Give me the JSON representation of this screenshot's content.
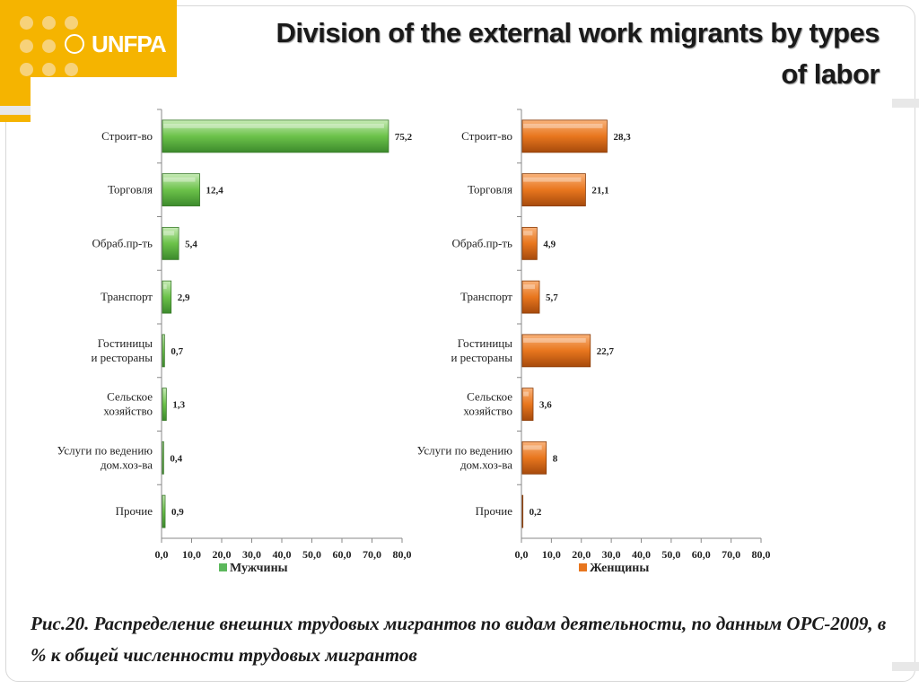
{
  "slide": {
    "title": "Division of the external work migrants  by types of labor",
    "logo_text": "UNFPA",
    "caption": "Рис.20. Распределение внешних трудовых мигрантов по видам деятельности, по данным ОРС-2009, в % к общей численности трудовых мигрантов"
  },
  "colors": {
    "logo": "#f5b400",
    "men": "#5cb85c",
    "women": "#e8761e"
  },
  "chart_data": [
    {
      "type": "bar",
      "orientation": "horizontal",
      "categories": [
        "Строит-во",
        "Торговля",
        "Обраб.пр-ть",
        "Транспорт",
        "Гостиницы и рестораны",
        "Сельское хозяйство",
        "Услуги по ведению дом.хоз-ва",
        "Прочие"
      ],
      "series": [
        {
          "name": "Мужчины",
          "values": [
            75.2,
            12.4,
            5.4,
            2.9,
            0.7,
            1.3,
            0.4,
            0.9
          ],
          "value_labels": [
            "75,2",
            "12,4",
            "5,4",
            "2,9",
            "0,7",
            "1,3",
            "0,4",
            "0,9"
          ]
        }
      ],
      "xlim": [
        0,
        80
      ],
      "x_ticks": [
        "0,0",
        "10,0",
        "20,0",
        "30,0",
        "40,0",
        "50,0",
        "60,0",
        "70,0",
        "80,0"
      ],
      "legend": "bottom",
      "grid": false
    },
    {
      "type": "bar",
      "orientation": "horizontal",
      "categories": [
        "Строит-во",
        "Торговля",
        "Обраб.пр-ть",
        "Транспорт",
        "Гостиницы и рестораны",
        "Сельское хозяйство",
        "Услуги по ведению дом.хоз-ва",
        "Прочие"
      ],
      "series": [
        {
          "name": "Женщины",
          "values": [
            28.3,
            21.1,
            4.9,
            5.7,
            22.7,
            3.6,
            8,
            0.2
          ],
          "value_labels": [
            "28,3",
            "21,1",
            "4,9",
            "5,7",
            "22,7",
            "3,6",
            "8",
            "0,2"
          ]
        }
      ],
      "xlim": [
        0,
        80
      ],
      "x_ticks": [
        "0,0",
        "10,0",
        "20,0",
        "30,0",
        "40,0",
        "50,0",
        "60,0",
        "70,0",
        "80,0"
      ],
      "legend": "bottom",
      "grid": false
    }
  ]
}
